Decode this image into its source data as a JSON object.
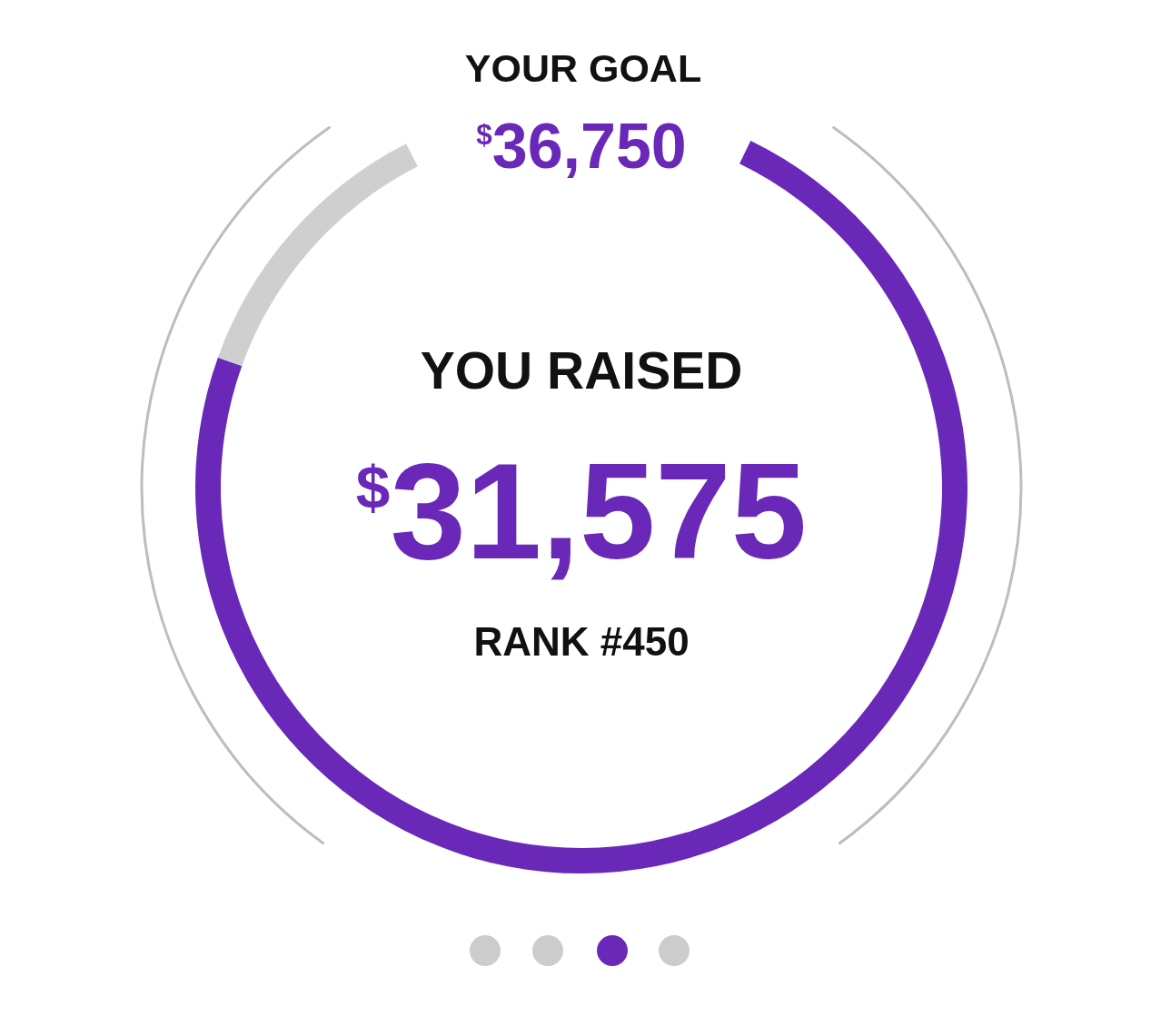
{
  "chart_data": {
    "type": "donut",
    "title": "YOUR GOAL",
    "subtitle": "$^{$}$36,750",
    "categories": [
      null,
      null
    ],
    "values": [
      85.9,
      14.1
    ],
    "colors": [
      "#6a28b8",
      "#cfcfcf"
    ],
    "annotations": [
      "YOU RAISED",
      "$^{$}$31,575",
      "RANK #450"
    ]
  }
}
